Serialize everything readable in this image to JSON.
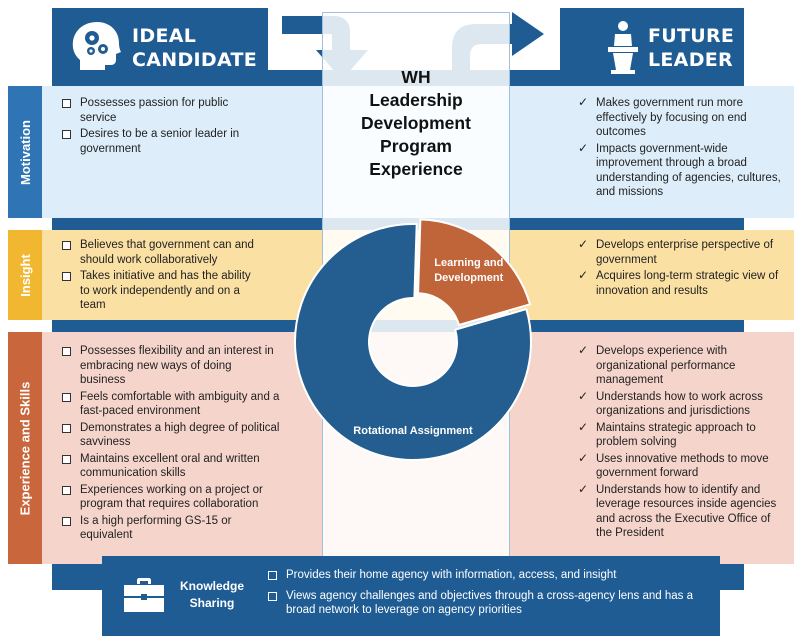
{
  "ideal_candidate": {
    "title_line1": "IDEAL",
    "title_line2": "CANDIDATE",
    "icon": "head-gears-icon"
  },
  "future_leader": {
    "title_line1": "FUTURE",
    "title_line2": "LEADER",
    "icon": "podium-speaker-icon"
  },
  "center": {
    "title_line1": "WH",
    "title_line2": "Leadership",
    "title_line3": "Development",
    "title_line4": "Program",
    "title_line5": "Experience"
  },
  "donut": {
    "segments": [
      {
        "label": "Learning and Development",
        "share": 0.2,
        "color": "#c0643a"
      },
      {
        "label": "Rotational Assignment",
        "share": 0.8,
        "color": "#245d8f"
      }
    ]
  },
  "rows": {
    "motivation": {
      "label": "Motivation",
      "color": "#2f75b5",
      "left": [
        "Possesses passion for public service",
        "Desires to be a senior leader in government"
      ],
      "right": [
        "Makes government run more effectively by focusing on end outcomes",
        "Impacts government-wide improvement through a broad understanding of agencies, cultures, and missions"
      ]
    },
    "insight": {
      "label": "Insight",
      "color": "#f2b731",
      "left": [
        "Believes that government can and should work collaboratively",
        "Takes initiative  and has the ability to work independently and on a team"
      ],
      "right": [
        "Develops enterprise perspective of government",
        "Acquires long-term strategic view of innovation and results"
      ]
    },
    "experience": {
      "label": "Experience and Skills",
      "color": "#c9663c",
      "left": [
        "Possesses flexibility and an interest in embracing new ways of doing business",
        "Feels comfortable with ambiguity and a fast-paced environment",
        "Demonstrates a high degree of political savviness",
        "Maintains excellent oral and written communication skills",
        "Experiences working on a project or program that requires collaboration",
        "Is a high performing GS-15 or equivalent"
      ],
      "right": [
        "Develops experience with organizational performance management",
        "Understands how to work across organizations and jurisdictions",
        "Maintains strategic approach to problem solving",
        "Uses innovative methods to move government forward",
        "Understands how to identify and leverage resources inside agencies and across the Executive Office of the President"
      ]
    }
  },
  "knowledge": {
    "label_line1": "Knowledge",
    "label_line2": "Sharing",
    "icon": "briefcase-icon",
    "items": [
      "Provides their home agency with information, access, and insight",
      "Views agency challenges and objectives through a cross-agency lens and has a broad network to leverage on agency priorities"
    ]
  }
}
